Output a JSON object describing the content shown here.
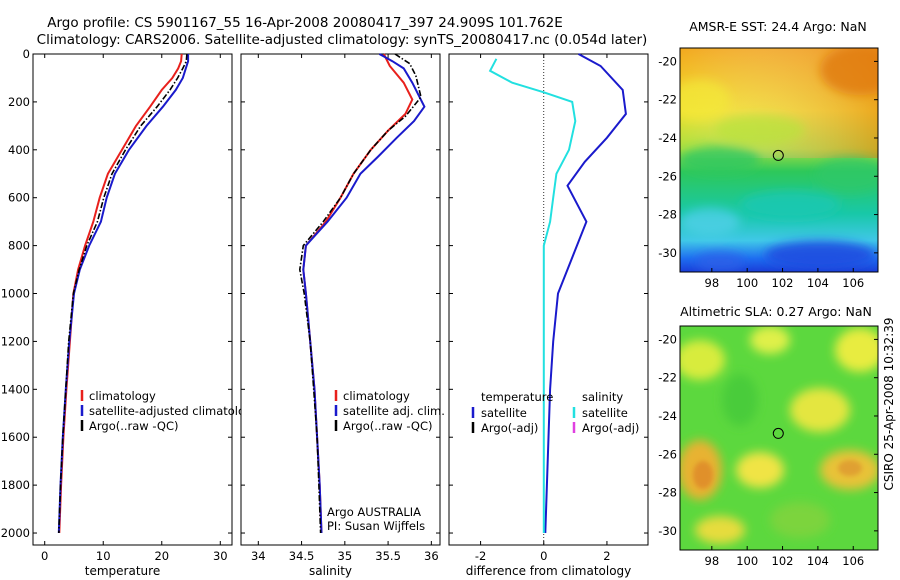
{
  "header": {
    "title_line1": "Argo profile: CS 5901167_55 16-Apr-2008 20080417_397 24.909S 101.762E",
    "title_line2": "Climatology: CARS2006. Satellite-adjusted climatology: synTS_20080417.nc (0.054d later)"
  },
  "side_label": "CSIRO 25-Apr-2008 10:32:39",
  "chart_data": [
    {
      "type": "line",
      "id": "temperature",
      "xlabel": "temperature",
      "ylabel": "",
      "xlim": [
        -2,
        32
      ],
      "ylim": [
        0,
        2050
      ],
      "y_inverted": true,
      "xticks": [
        0,
        10,
        20,
        30
      ],
      "yticks": [
        0,
        200,
        400,
        600,
        800,
        1000,
        1200,
        1400,
        1600,
        1800,
        2000
      ],
      "legend": [
        "climatology",
        "satellite-adjusted climatology",
        "Argo(..raw -QC)"
      ],
      "series": [
        {
          "name": "climatology",
          "color": "#e8201c",
          "points": [
            [
              23.4,
              0
            ],
            [
              23.3,
              30
            ],
            [
              22.8,
              60
            ],
            [
              21.8,
              100
            ],
            [
              20.0,
              150
            ],
            [
              18.0,
              220
            ],
            [
              15.6,
              300
            ],
            [
              13.2,
              400
            ],
            [
              10.8,
              500
            ],
            [
              9.4,
              600
            ],
            [
              8.3,
              700
            ],
            [
              6.9,
              800
            ],
            [
              5.7,
              900
            ],
            [
              4.9,
              1000
            ],
            [
              4.3,
              1200
            ],
            [
              3.7,
              1400
            ],
            [
              3.2,
              1600
            ],
            [
              2.8,
              1800
            ],
            [
              2.5,
              2000
            ]
          ]
        },
        {
          "name": "satellite-adjusted climatology",
          "color": "#1a1acc",
          "points": [
            [
              24.5,
              0
            ],
            [
              24.5,
              30
            ],
            [
              24.1,
              60
            ],
            [
              23.6,
              100
            ],
            [
              22.4,
              150
            ],
            [
              20.2,
              220
            ],
            [
              17.4,
              300
            ],
            [
              14.4,
              400
            ],
            [
              12.0,
              500
            ],
            [
              10.6,
              600
            ],
            [
              9.6,
              700
            ],
            [
              7.6,
              800
            ],
            [
              6.0,
              900
            ],
            [
              5.0,
              1000
            ],
            [
              4.2,
              1200
            ],
            [
              3.6,
              1400
            ],
            [
              3.1,
              1600
            ],
            [
              2.7,
              1800
            ],
            [
              2.4,
              2000
            ]
          ]
        },
        {
          "name": "Argo(..raw -QC)",
          "color": "#000000",
          "dashed": true,
          "points": [
            [
              24.3,
              0
            ],
            [
              24.2,
              30
            ],
            [
              23.6,
              60
            ],
            [
              22.7,
              100
            ],
            [
              21.4,
              150
            ],
            [
              19.2,
              220
            ],
            [
              16.4,
              300
            ],
            [
              13.8,
              400
            ],
            [
              11.5,
              500
            ],
            [
              10.1,
              600
            ],
            [
              9.0,
              700
            ],
            [
              7.2,
              800
            ],
            [
              5.9,
              900
            ],
            [
              4.9,
              1000
            ],
            [
              4.1,
              1200
            ],
            [
              3.6,
              1400
            ],
            [
              3.1,
              1600
            ],
            [
              2.7,
              1800
            ],
            [
              2.4,
              2000
            ]
          ]
        }
      ]
    },
    {
      "type": "line",
      "id": "salinity",
      "xlabel": "salinity",
      "ylabel": "",
      "xlim": [
        33.8,
        36.1
      ],
      "ylim": [
        0,
        2050
      ],
      "y_inverted": true,
      "xticks": [
        34,
        34.5,
        35,
        35.5,
        36
      ],
      "yticks": [
        0,
        200,
        400,
        600,
        800,
        1000,
        1200,
        1400,
        1600,
        1800,
        2000
      ],
      "legend": [
        "climatology",
        "satellite adj. clim.",
        "Argo(..raw -QC)"
      ],
      "series": [
        {
          "name": "climatology",
          "color": "#e8201c",
          "points": [
            [
              35.45,
              0
            ],
            [
              35.52,
              50
            ],
            [
              35.68,
              120
            ],
            [
              35.78,
              190
            ],
            [
              35.7,
              250
            ],
            [
              35.5,
              320
            ],
            [
              35.3,
              400
            ],
            [
              35.1,
              500
            ],
            [
              34.95,
              600
            ],
            [
              34.78,
              700
            ],
            [
              34.55,
              800
            ],
            [
              34.52,
              900
            ],
            [
              34.55,
              1000
            ],
            [
              34.6,
              1200
            ],
            [
              34.65,
              1400
            ],
            [
              34.68,
              1600
            ],
            [
              34.71,
              1800
            ],
            [
              34.73,
              2000
            ]
          ]
        },
        {
          "name": "satellite adj. clim.",
          "color": "#1a1acc",
          "points": [
            [
              35.4,
              0
            ],
            [
              35.55,
              30
            ],
            [
              35.68,
              60
            ],
            [
              35.78,
              120
            ],
            [
              35.92,
              220
            ],
            [
              35.8,
              280
            ],
            [
              35.6,
              350
            ],
            [
              35.38,
              430
            ],
            [
              35.18,
              500
            ],
            [
              35.02,
              600
            ],
            [
              34.8,
              700
            ],
            [
              34.55,
              800
            ],
            [
              34.52,
              900
            ],
            [
              34.55,
              1000
            ],
            [
              34.6,
              1200
            ],
            [
              34.65,
              1400
            ],
            [
              34.68,
              1600
            ],
            [
              34.71,
              1800
            ],
            [
              34.73,
              2000
            ]
          ]
        },
        {
          "name": "Argo(..raw -QC)",
          "color": "#000000",
          "dashed": true,
          "points": [
            [
              35.58,
              0
            ],
            [
              35.75,
              40
            ],
            [
              35.82,
              90
            ],
            [
              35.88,
              180
            ],
            [
              35.7,
              260
            ],
            [
              35.5,
              320
            ],
            [
              35.3,
              400
            ],
            [
              35.1,
              500
            ],
            [
              34.95,
              600
            ],
            [
              34.75,
              700
            ],
            [
              34.52,
              800
            ],
            [
              34.48,
              900
            ],
            [
              34.53,
              1000
            ],
            [
              34.6,
              1200
            ],
            [
              34.64,
              1400
            ],
            [
              34.68,
              1600
            ],
            [
              34.7,
              1800
            ],
            [
              34.72,
              2000
            ]
          ]
        }
      ],
      "annotations": [
        "Argo AUSTRALIA",
        "PI: Susan Wijffels"
      ]
    },
    {
      "type": "line",
      "id": "difference",
      "xlabel": "difference from climatology",
      "ylabel": "",
      "xlim": [
        -3,
        3.3
      ],
      "ylim": [
        0,
        2050
      ],
      "y_inverted": true,
      "xticks": [
        -2,
        0,
        2
      ],
      "yticks": [
        0,
        200,
        400,
        600,
        800,
        1000,
        1200,
        1400,
        1600,
        1800,
        2000
      ],
      "zero_line": true,
      "legend_left_title": "temperature",
      "legend_left": [
        "satellite",
        "Argo(-adj)"
      ],
      "legend_right_title": "salinity",
      "legend_right": [
        "satellite",
        "Argo(-adj)"
      ],
      "series": [
        {
          "name": "temperature satellite",
          "color": "#1a1acc",
          "points": [
            [
              1.1,
              0
            ],
            [
              1.8,
              50
            ],
            [
              2.5,
              150
            ],
            [
              2.6,
              250
            ],
            [
              2.0,
              350
            ],
            [
              1.3,
              450
            ],
            [
              0.75,
              550
            ],
            [
              0.95,
              600
            ],
            [
              1.35,
              700
            ],
            [
              0.9,
              850
            ],
            [
              0.45,
              1000
            ],
            [
              0.3,
              1200
            ],
            [
              0.2,
              1400
            ],
            [
              0.15,
              1600
            ],
            [
              0.1,
              1800
            ],
            [
              0.05,
              2000
            ]
          ]
        },
        {
          "name": "salinity satellite",
          "color": "#22e0e0",
          "points": [
            [
              -1.5,
              20
            ],
            [
              -1.7,
              70
            ],
            [
              -1.0,
              120
            ],
            [
              0.0,
              160
            ],
            [
              0.9,
              200
            ],
            [
              1.0,
              280
            ],
            [
              0.8,
              400
            ],
            [
              0.4,
              500
            ],
            [
              0.3,
              600
            ],
            [
              0.2,
              700
            ],
            [
              0.0,
              800
            ],
            [
              0.0,
              1000
            ],
            [
              0.0,
              1400
            ],
            [
              0.0,
              2000
            ]
          ]
        }
      ]
    }
  ],
  "maps": [
    {
      "id": "sst",
      "title": "AMSR-E SST: 24.4 Argo: NaN",
      "xticks": [
        98,
        100,
        102,
        104,
        106
      ],
      "yticks": [
        -20,
        -22,
        -24,
        -26,
        -28,
        -30
      ],
      "xlim": [
        96.2,
        107.4
      ],
      "ylim": [
        -31.0,
        -19.3
      ],
      "marker": [
        101.76,
        -24.91
      ]
    },
    {
      "id": "sla",
      "title": "Altimetric SLA: 0.27 Argo: NaN",
      "xticks": [
        98,
        100,
        102,
        104,
        106
      ],
      "yticks": [
        -20,
        -22,
        -24,
        -26,
        -28,
        -30
      ],
      "xlim": [
        96.2,
        107.4
      ],
      "ylim": [
        -31.0,
        -19.3
      ],
      "marker": [
        101.76,
        -24.91
      ]
    }
  ]
}
